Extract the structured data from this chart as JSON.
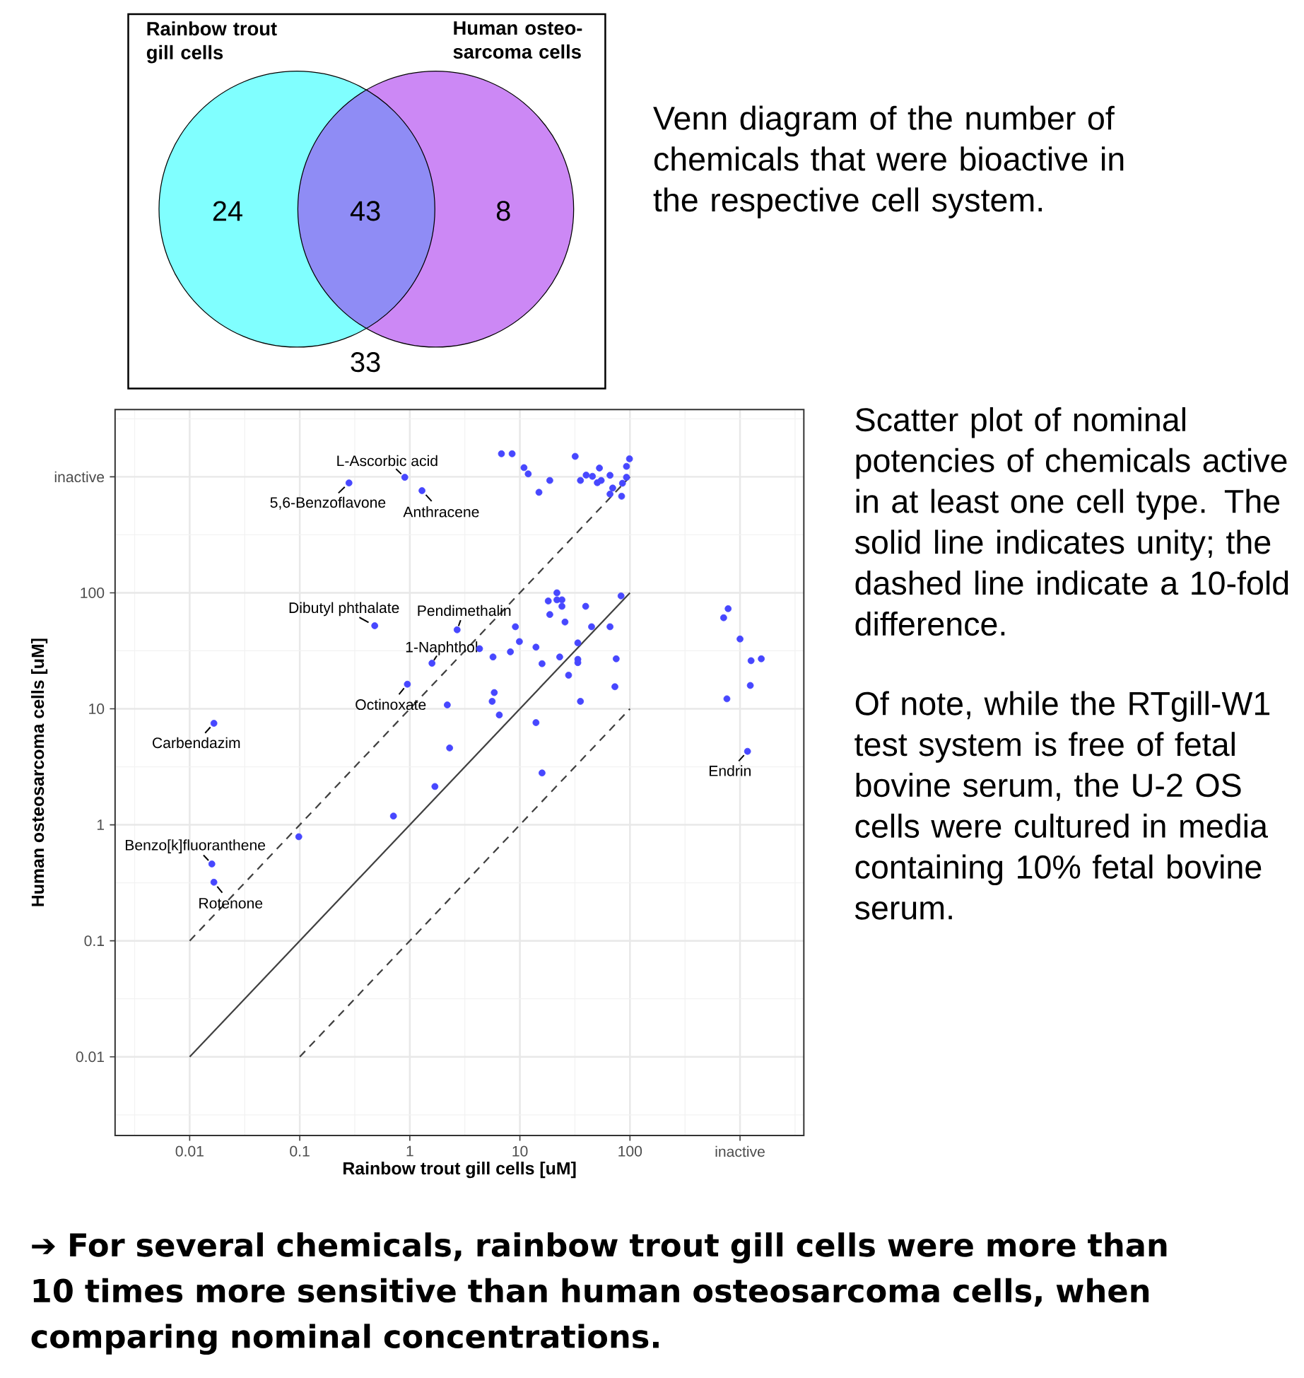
{
  "chart_data": [
    {
      "type": "other",
      "categories": [
        null,
        null,
        null,
        null
      ],
      "values": [
        24,
        43,
        8,
        33
      ],
      "data_labels": true,
      "colors": [
        "#80ffff",
        "#8f8cf5",
        "#cc88f5",
        null
      ],
      "annotations": [
        "Rainbow trout gill cells",
        "Human osteo-sarcoma cells",
        "Venn diagram of the number of chemicals that were bioactive in the respective cell system."
      ]
    },
    {
      "type": "scatter",
      "xlabel": "Rainbow trout gill cells [uM]",
      "ylabel": "Human osteosarcoma cells [uM]",
      "log": "xy",
      "grid": true,
      "xlim": [
        0.0021,
        3800
      ],
      "ylim": [
        0.0021,
        3800
      ],
      "xticks": [
        0.01,
        0.1,
        1,
        10,
        100,
        {
          "value": 1000,
          "label": "inactive"
        }
      ],
      "yticks": [
        0.01,
        0.1,
        1,
        10,
        100,
        {
          "value": 1000,
          "label": "inactive"
        }
      ],
      "series": [
        {
          "type": "scatter",
          "color": "#4747ff",
          "marker": "circle",
          "x": [
            6.8,
            8.5,
            10.9,
            11.9,
            14.9,
            18.7,
            31.8,
            35.5,
            40,
            45.6,
            52.8,
            50.5,
            54.8,
            65.9,
            69.7,
            65.9,
            84,
            85.5,
            93,
            93,
            99,
            0.28,
            0.9,
            1.29,
            21.7,
            18.1,
            21.7,
            24.1,
            24.1,
            39.6,
            83,
            18.7,
            25.7,
            9.1,
            44.8,
            65.9,
            9.9,
            14,
            33.6,
            4.3,
            5.7,
            8.2,
            23,
            15.9,
            33.6,
            33.6,
            75,
            27.7,
            73,
            5.85,
            5.6,
            35.5,
            2.19,
            6.5,
            14,
            2.3,
            15.9,
            0.48,
            2.69,
            1.59,
            0.95,
            0.0166,
            780,
            710,
            1000,
            1560,
            1260,
            1240,
            760,
            1170,
            1.69,
            0.71,
            0.098,
            0.0159,
            0.0166
          ],
          "values": [
            1580,
            1580,
            1200,
            1060,
            735,
            930,
            1500,
            930,
            1035,
            1010,
            1190,
            890,
            930,
            1030,
            800,
            710,
            680,
            880,
            990,
            1230,
            1430,
            885,
            990,
            760,
            100,
            85,
            87,
            87,
            76.5,
            76.5,
            94,
            65,
            56,
            51,
            51,
            51,
            38,
            34,
            37,
            33,
            28,
            31,
            28,
            24.5,
            26.7,
            25,
            27,
            19.5,
            15.5,
            13.8,
            11.6,
            11.6,
            10.8,
            8.85,
            7.6,
            4.6,
            2.8,
            52,
            48,
            24.7,
            16.3,
            7.5,
            73,
            61,
            40,
            27,
            26,
            15.9,
            12.2,
            4.3,
            2.14,
            1.19,
            0.79,
            0.46,
            0.32
          ]
        },
        {
          "type": "line",
          "color": "#404040",
          "marker": "none",
          "line_style": "solid",
          "x": [
            0.01,
            100
          ],
          "values": [
            0.01,
            100
          ]
        },
        {
          "type": "line",
          "color": "#404040",
          "marker": "none",
          "line_style": "dashed",
          "x": [
            0.01,
            100
          ],
          "values": [
            0.1,
            1000
          ]
        },
        {
          "type": "line",
          "color": "#404040",
          "marker": "none",
          "line_style": "dashed",
          "x": [
            0.1,
            100
          ],
          "values": [
            0.01,
            10
          ]
        }
      ],
      "annotations": [
        {
          "text": "L-Ascorbic acid",
          "x": 0.9,
          "y": 990
        },
        {
          "text": "5,6-Benzoflavone",
          "x": 0.28,
          "y": 885
        },
        {
          "text": "Anthracene",
          "x": 1.29,
          "y": 760
        },
        {
          "text": "Dibutyl phthalate",
          "x": 0.48,
          "y": 52
        },
        {
          "text": "Pendimethalin",
          "x": 2.69,
          "y": 48
        },
        {
          "text": "1-Naphthol",
          "x": 1.59,
          "y": 24.7
        },
        {
          "text": "Octinoxate",
          "x": 0.95,
          "y": 16.3
        },
        {
          "text": "Carbendazim",
          "x": 0.0166,
          "y": 7.5
        },
        {
          "text": "Benzo[k]fluoranthene",
          "x": 0.0159,
          "y": 0.46
        },
        {
          "text": "Rotenone",
          "x": 0.0166,
          "y": 0.32
        },
        {
          "text": "Endrin",
          "x": 1170,
          "y": 4.3
        },
        "Scatter plot of nominal potencies of chemicals active in at least one cell type. The solid line indicates unity; the dashed line indicate a 10-fold difference.",
        "Of note, while the RTgill-W1 test system is free of fetal bovine serum, the U-2 OS cells were cultured in media containing 10% fetal bovine serum.",
        "➔ For several chemicals, rainbow trout gill cells were more than 10 times more sensitive than human osteosarcoma cells, when comparing nominal concentrations."
      ]
    }
  ]
}
